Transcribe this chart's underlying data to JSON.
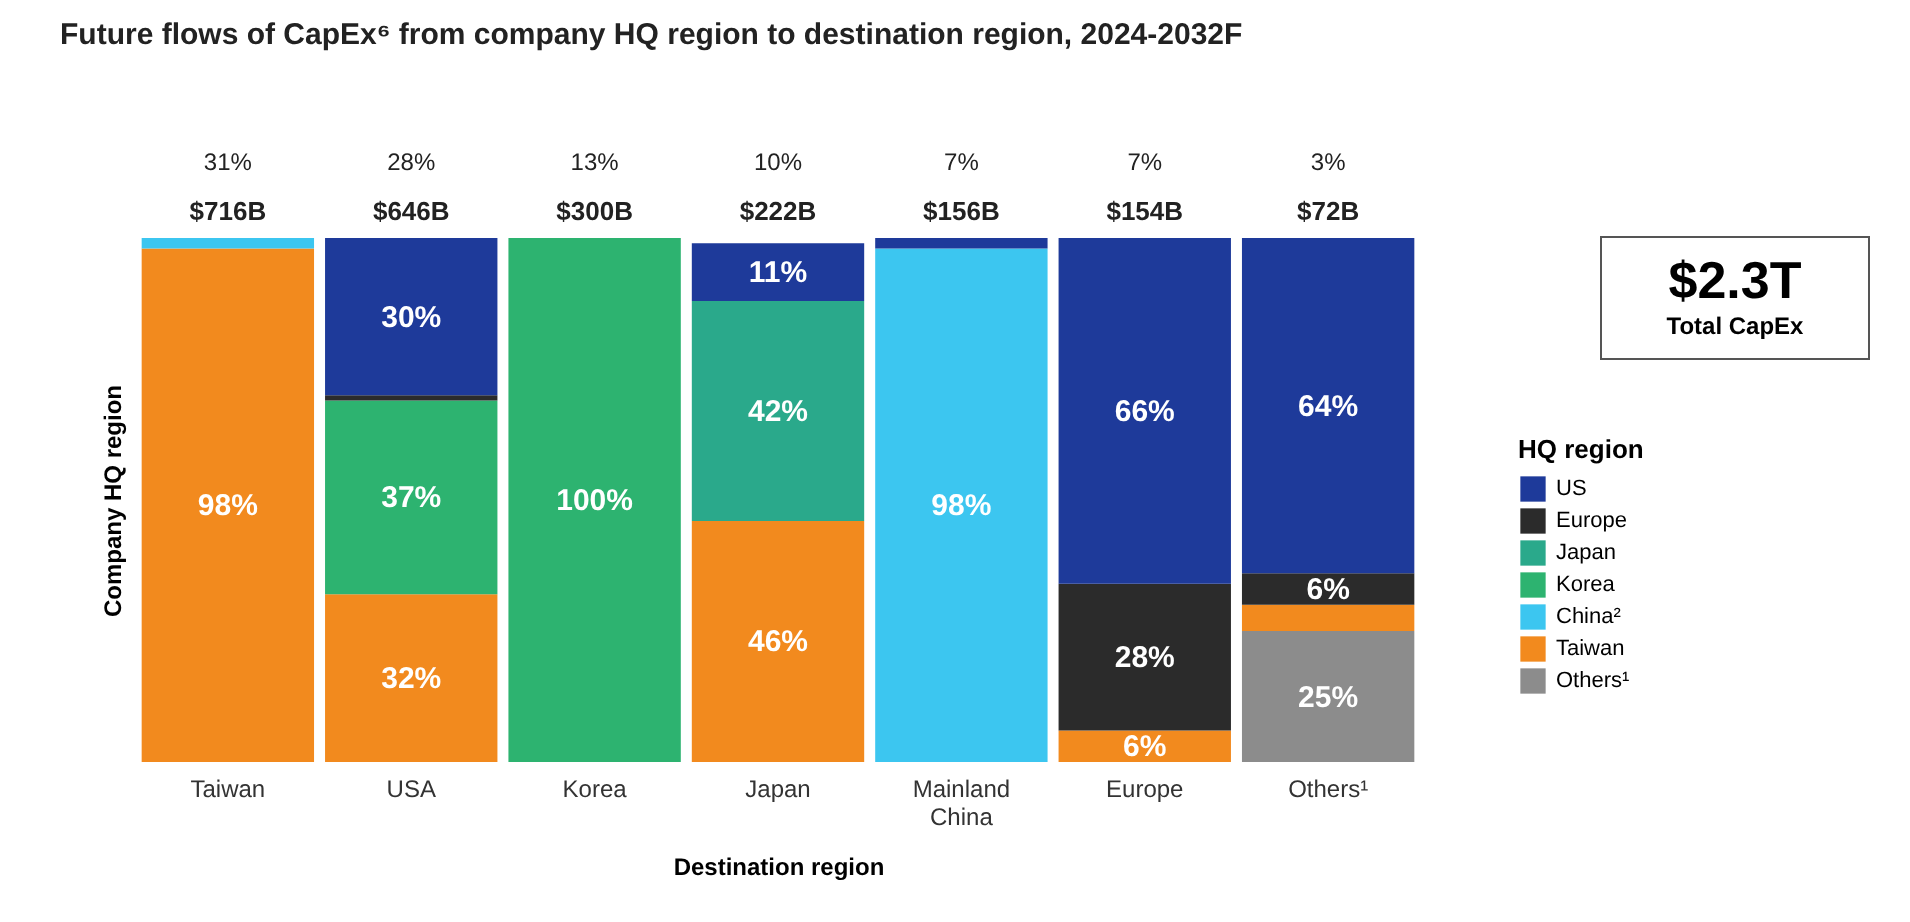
{
  "chart_data": {
    "type": "bar",
    "stacked": true,
    "title": "Future flows of CapEx⁶ from company HQ region to destination region, 2024-2032F",
    "xlabel": "Destination region",
    "ylabel": "Company HQ region",
    "legend_title": "HQ region",
    "legend": "right",
    "tick_labels": "x",
    "ylim": [
      0,
      100
    ],
    "categories": [
      "Taiwan",
      "USA",
      "Korea",
      "Japan",
      "Mainland China",
      "Europe",
      "Others¹"
    ],
    "series": [
      {
        "name": "Others¹",
        "color": "#8c8c8c",
        "values": [
          0,
          0,
          0,
          0,
          0,
          0,
          25
        ],
        "value_labels": [
          null,
          null,
          null,
          null,
          null,
          null,
          "25%"
        ]
      },
      {
        "name": "Taiwan",
        "color": "#f28a1e",
        "values": [
          98,
          32,
          0,
          46,
          0,
          6,
          5
        ],
        "value_labels": [
          "98%",
          "32%",
          null,
          "46%",
          null,
          "6%",
          null
        ]
      },
      {
        "name": "China²",
        "color": "#3cc6f0",
        "values": [
          2,
          0,
          0,
          0,
          98,
          0,
          0
        ],
        "value_labels": [
          null,
          null,
          null,
          null,
          "98%",
          null,
          null
        ]
      },
      {
        "name": "Korea",
        "color": "#2db370",
        "values": [
          0,
          37,
          100,
          0,
          0,
          0,
          0
        ],
        "value_labels": [
          null,
          "37%",
          "100%",
          null,
          null,
          null,
          null
        ]
      },
      {
        "name": "Japan",
        "color": "#2aa98b",
        "values": [
          0,
          0,
          0,
          42,
          0,
          0,
          0
        ],
        "value_labels": [
          null,
          null,
          null,
          "42%",
          null,
          null,
          null
        ]
      },
      {
        "name": "Europe",
        "color": "#2b2b2b",
        "values": [
          0,
          1,
          0,
          0,
          0,
          28,
          6
        ],
        "value_labels": [
          null,
          null,
          null,
          null,
          null,
          "28%",
          "6%"
        ]
      },
      {
        "name": "US",
        "color": "#1e3a9a",
        "values": [
          0,
          30,
          0,
          11,
          2,
          66,
          64
        ],
        "value_labels": [
          null,
          "30%",
          null,
          "11%",
          null,
          "66%",
          "64%"
        ]
      }
    ],
    "annotations": [
      "31%",
      "28%",
      "13%",
      "10%",
      "7%",
      "7%",
      "3%",
      "$716B",
      "$646B",
      "$300B",
      "$222B",
      "$156B",
      "$154B",
      "$72B",
      "$2.3T",
      "Total CapEx"
    ]
  }
}
